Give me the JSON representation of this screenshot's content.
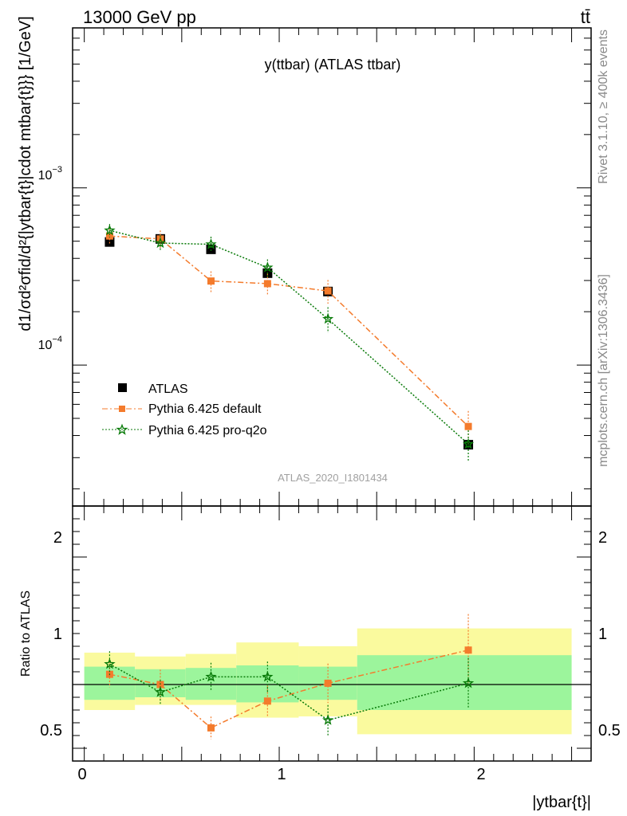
{
  "header": {
    "energy_label": "13000 GeV pp",
    "process_label": "tt̄",
    "plot_title": "y(ttbar) (ATLAS ttbar)",
    "analysis_id": "ATLAS_2020_I1801434",
    "rivet_version": "Rivet 3.1.10, ≥ 400k events",
    "source": "mcplots.cern.ch [arXiv:1306.3436]"
  },
  "axes": {
    "ylabel_main": "d1/σd²σfid/d²{|ytbar{t}|cdot mtbar{t}}} [1/GeV]",
    "ylabel_ratio": "Ratio to ATLAS",
    "xlabel": "|ytbar{t}|",
    "ylim_main": [
      1.6e-05,
      0.008
    ],
    "ylim_ratio": [
      0.4,
      2.4
    ],
    "xlim": [
      -0.06,
      2.6
    ],
    "yticks_main": [
      "10",
      "10"
    ],
    "yticks_main_exp": [
      "−3",
      "−4"
    ],
    "yticks_ratio": [
      "0.5",
      "1",
      "2"
    ],
    "xticks": [
      "0",
      "1",
      "2"
    ]
  },
  "colors": {
    "atlas": "#000000",
    "pythia_default": "#f47b2c",
    "pythia_proq2o": "#087a08",
    "band_stat": "#9cf59c",
    "band_total": "#fafa9e"
  },
  "legend": [
    {
      "label": "ATLAS"
    },
    {
      "label": "Pythia 6.425 default"
    },
    {
      "label": "Pythia 6.425 pro-q2o"
    }
  ],
  "chart_data": {
    "type": "scatter",
    "yscale": "log",
    "x": [
      0.13,
      0.39,
      0.65,
      0.94,
      1.25,
      1.97
    ],
    "x_bins": [
      [
        0.0,
        0.26
      ],
      [
        0.26,
        0.52
      ],
      [
        0.52,
        0.78
      ],
      [
        0.78,
        1.1
      ],
      [
        1.1,
        1.4
      ],
      [
        1.4,
        2.5
      ]
    ],
    "series": [
      {
        "name": "ATLAS",
        "values": [
          0.000495,
          0.000515,
          0.00045,
          0.00033,
          0.00026,
          3.55e-05
        ]
      },
      {
        "name": "Pythia 6.425 default",
        "values": [
          0.000535,
          0.000515,
          0.000298,
          0.000288,
          0.000262,
          4.5e-05
        ],
        "errors": [
          5e-05,
          6e-05,
          4e-05,
          4e-05,
          4e-05,
          1e-05
        ]
      },
      {
        "name": "Pythia 6.425 pro-q2o",
        "values": [
          0.000575,
          0.000488,
          0.00048,
          0.000355,
          0.000182,
          3.58e-05
        ],
        "errors": [
          5e-05,
          5e-05,
          5e-05,
          4e-05,
          3e-05,
          7e-06
        ]
      }
    ],
    "ratio": {
      "stat_band": [
        [
          0.88,
          1.14
        ],
        [
          0.9,
          1.12
        ],
        [
          0.88,
          1.13
        ],
        [
          0.86,
          1.15
        ],
        [
          0.88,
          1.14
        ],
        [
          0.8,
          1.23
        ]
      ],
      "total_band": [
        [
          0.8,
          1.25
        ],
        [
          0.84,
          1.22
        ],
        [
          0.84,
          1.24
        ],
        [
          0.74,
          1.33
        ],
        [
          0.75,
          1.3
        ],
        [
          0.61,
          1.44
        ]
      ],
      "series": [
        {
          "name": "Pythia 6.425 default",
          "values": [
            1.08,
            1.0,
            0.66,
            0.87,
            1.01,
            1.27
          ]
        },
        {
          "name": "Pythia 6.425 pro-q2o",
          "values": [
            1.16,
            0.94,
            1.06,
            1.06,
            0.72,
            1.01
          ]
        }
      ]
    }
  }
}
